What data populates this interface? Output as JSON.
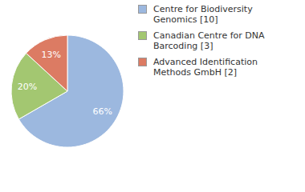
{
  "chart_data": {
    "type": "pie",
    "categories": [
      "Centre for Biodiversity Genomics [10]",
      "Canadian Centre for DNA Barcoding [3]",
      "Advanced Identification Methods GmbH [2]"
    ],
    "values": [
      66,
      20,
      13
    ],
    "value_labels": [
      "66%",
      "20%",
      "13%"
    ],
    "colors": [
      "#9cb8df",
      "#a3c771",
      "#dc7b63"
    ],
    "data_labels": true,
    "legend": "right"
  }
}
